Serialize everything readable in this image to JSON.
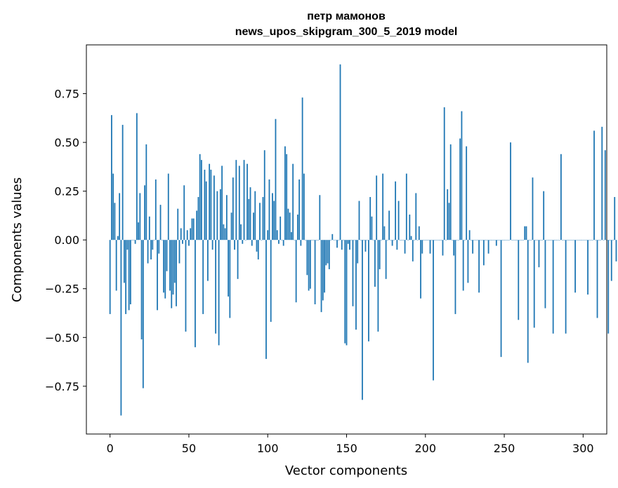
{
  "chart_data": {
    "type": "bar",
    "title": "петр мамонов",
    "subtitle": "news_upos_skipgram_300_5_2019 model",
    "xlabel": "Vector components",
    "ylabel": "Components values",
    "xlim": [
      -15,
      315
    ],
    "ylim": [
      -0.995,
      1.0
    ],
    "xticks": [
      0,
      50,
      100,
      150,
      200,
      250,
      300
    ],
    "yticks": [
      -0.75,
      -0.5,
      -0.25,
      0.0,
      0.25,
      0.5,
      0.75
    ],
    "xtick_labels": [
      "0",
      "50",
      "100",
      "150",
      "200",
      "250",
      "300"
    ],
    "ytick_labels": [
      "−0.75",
      "−0.50",
      "−0.25",
      "0.00",
      "0.25",
      "0.50",
      "0.75"
    ],
    "grid": false,
    "legend": "none",
    "bar_color": "#1f77b4",
    "series": [
      {
        "values": [
          -0.38,
          0.64,
          0.34,
          0.19,
          -0.26,
          0.02,
          0.24,
          -0.9,
          0.59,
          -0.22,
          -0.38,
          -0.05,
          -0.36,
          -0.33,
          0.0,
          0.0,
          -0.02,
          0.65,
          0.09,
          0.24,
          -0.51,
          -0.76,
          0.28,
          0.49,
          -0.12,
          0.12,
          -0.1,
          -0.05,
          0.0,
          0.31,
          -0.36,
          -0.07,
          0.18,
          0.0,
          -0.27,
          -0.3,
          -0.16,
          0.34,
          -0.26,
          -0.35,
          -0.28,
          -0.22,
          -0.34,
          0.16,
          -0.12,
          0.06,
          -0.02,
          0.28,
          -0.47,
          0.05,
          -0.03,
          0.06,
          0.11,
          0.11,
          -0.55,
          0.15,
          0.22,
          0.44,
          0.41,
          -0.38,
          0.36,
          0.3,
          -0.21,
          0.39,
          0.36,
          -0.05,
          0.33,
          -0.48,
          0.25,
          -0.54,
          0.26,
          0.38,
          0.08,
          0.06,
          0.23,
          -0.29,
          -0.4,
          0.14,
          0.32,
          -0.05,
          0.41,
          -0.2,
          0.38,
          0.08,
          -0.02,
          0.41,
          0.0,
          0.39,
          0.21,
          0.27,
          -0.03,
          0.14,
          0.25,
          -0.06,
          -0.1,
          0.19,
          0.0,
          0.22,
          0.46,
          -0.61,
          0.05,
          0.31,
          -0.42,
          0.24,
          0.2,
          0.62,
          0.05,
          -0.02,
          0.12,
          0.0,
          -0.03,
          0.48,
          0.44,
          0.16,
          0.14,
          0.04,
          0.39,
          0.0,
          -0.32,
          0.13,
          0.31,
          -0.03,
          0.73,
          0.34,
          0.0,
          -0.18,
          -0.26,
          -0.25,
          0.0,
          0.0,
          -0.33,
          0.0,
          0.0,
          0.23,
          -0.37,
          -0.31,
          -0.27,
          -0.13,
          -0.12,
          -0.15,
          0.0,
          0.03,
          0.0,
          0.0,
          -0.04,
          0.0,
          0.9,
          -0.05,
          0.0,
          -0.53,
          -0.54,
          -0.02,
          -0.05,
          0.0,
          -0.34,
          0.0,
          -0.46,
          -0.12,
          0.2,
          0.0,
          -0.82,
          0.0,
          -0.06,
          0.0,
          -0.52,
          0.22,
          0.12,
          0.0,
          -0.24,
          0.33,
          -0.47,
          -0.15,
          0.0,
          0.34,
          0.07,
          -0.2,
          0.0,
          0.15,
          0.0,
          -0.03,
          0.0,
          0.3,
          -0.05,
          0.2,
          0.0,
          0.0,
          0.0,
          -0.07,
          0.34,
          0.0,
          0.13,
          0.02,
          -0.11,
          0.0,
          0.24,
          0.0,
          0.07,
          -0.3,
          -0.07,
          0.0,
          0.0,
          0.0,
          0.0,
          -0.07,
          0.0,
          -0.72,
          0.0,
          0.0,
          0.0,
          0.0,
          0.0,
          -0.08,
          0.68,
          0.0,
          0.26,
          0.19,
          0.49,
          0.0,
          -0.08,
          -0.38,
          0.0,
          0.0,
          0.52,
          0.66,
          -0.26,
          0.0,
          0.48,
          -0.22,
          0.05,
          0.0,
          -0.07,
          0.0,
          0.0,
          0.0,
          -0.27,
          0.0,
          0.0,
          -0.13,
          0.0,
          0.0,
          -0.07,
          0.0,
          0.0,
          0.0,
          0.0,
          -0.03,
          0.0,
          0.0,
          -0.6,
          0.0,
          0.0,
          0.0,
          0.0,
          0.0,
          0.5,
          0.0,
          0.0,
          0.0,
          0.0,
          -0.41,
          0.0,
          0.0,
          0.0,
          0.07,
          0.07,
          -0.63,
          0.0,
          0.0,
          0.32,
          -0.45,
          0.0,
          0.0,
          -0.14,
          0.0,
          0.0,
          0.25,
          -0.35,
          0.0,
          0.0,
          0.0,
          0.0,
          -0.48,
          0.0,
          0.0,
          0.0,
          0.0,
          0.44,
          0.0,
          0.0,
          -0.48,
          0.0,
          0.0,
          0.0,
          0.0,
          0.0,
          -0.27,
          0.0,
          0.0,
          0.0,
          0.0,
          0.0,
          0.0,
          0.0,
          -0.28,
          0.0,
          0.0,
          0.0,
          0.56,
          0.0,
          -0.4,
          0.0,
          0.0,
          0.58,
          0.0,
          0.46,
          0.0,
          -0.48,
          0.0,
          -0.21,
          0.0,
          0.22,
          -0.11
        ]
      }
    ]
  }
}
